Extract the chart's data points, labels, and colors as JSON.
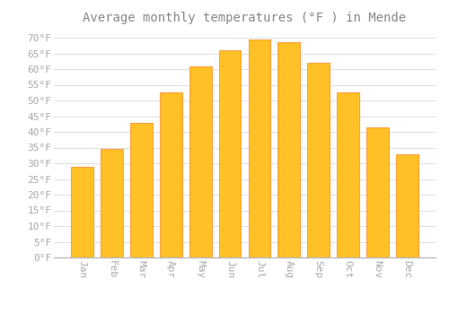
{
  "title": "Average monthly temperatures (°F ) in Mende",
  "months": [
    "Jan",
    "Feb",
    "Mar",
    "Apr",
    "May",
    "Jun",
    "Jul",
    "Aug",
    "Sep",
    "Oct",
    "Nov",
    "Dec"
  ],
  "values": [
    29,
    34.5,
    43,
    52.5,
    61,
    66,
    69.5,
    68.5,
    62,
    52.5,
    41.5,
    33
  ],
  "bar_color": "#FFC125",
  "bar_edge_color": "#FFA040",
  "background_color": "#FFFFFF",
  "ylim": [
    0,
    72
  ],
  "yticks": [
    0,
    5,
    10,
    15,
    20,
    25,
    30,
    35,
    40,
    45,
    50,
    55,
    60,
    65,
    70
  ],
  "grid_color": "#E0E0E0",
  "title_fontsize": 10,
  "tick_fontsize": 8,
  "tick_label_color": "#AAAAAA",
  "title_color": "#888888",
  "font_family": "monospace"
}
